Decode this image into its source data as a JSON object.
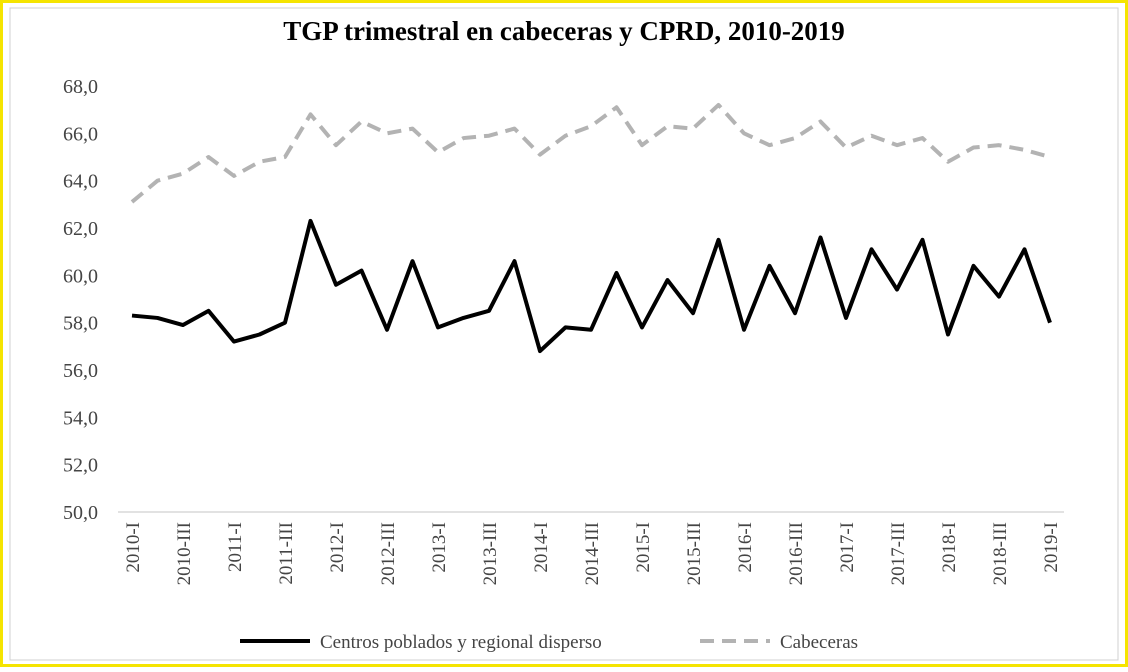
{
  "chart_data": {
    "type": "line",
    "title": "TGP trimestral en cabeceras y CPRD, 2010-2019",
    "categories": [
      "2010-I",
      null,
      "2010-III",
      null,
      "2011-I",
      null,
      "2011-III",
      null,
      "2012-I",
      null,
      "2012-III",
      null,
      "2013-I",
      null,
      "2013-III",
      null,
      "2014-I",
      null,
      "2014-III",
      null,
      "2015-I",
      null,
      "2015-III",
      null,
      "2016-I",
      null,
      "2016-III",
      null,
      "2017-I",
      null,
      "2017-III",
      null,
      "2018-I",
      null,
      "2018-III",
      null,
      "2019-I"
    ],
    "series": [
      {
        "name": "Centros poblados y regional disperso",
        "color": "#000000",
        "dash": false,
        "values": [
          58.3,
          58.2,
          57.9,
          58.5,
          57.2,
          57.5,
          58.0,
          62.3,
          59.6,
          60.2,
          57.7,
          60.6,
          57.8,
          58.2,
          58.5,
          60.6,
          56.8,
          57.8,
          57.7,
          60.1,
          57.8,
          59.8,
          58.4,
          61.5,
          57.7,
          60.4,
          58.4,
          61.6,
          58.2,
          61.1,
          59.4,
          61.5,
          57.5,
          60.4,
          59.1,
          61.1,
          58.0
        ]
      },
      {
        "name": "Cabeceras",
        "color": "#b3b3b3",
        "dash": true,
        "values": [
          63.1,
          64.0,
          64.3,
          65.0,
          64.2,
          64.8,
          65.0,
          66.8,
          65.5,
          66.5,
          66.0,
          66.2,
          65.2,
          65.8,
          65.9,
          66.2,
          65.1,
          65.9,
          66.3,
          67.1,
          65.5,
          66.3,
          66.2,
          67.2,
          66.0,
          65.5,
          65.8,
          66.5,
          65.4,
          65.9,
          65.5,
          65.8,
          64.8,
          65.4,
          65.5,
          65.3,
          65.0
        ]
      }
    ],
    "ylim": [
      50,
      68
    ],
    "yticks": [
      {
        "value": 50,
        "label": "50,0"
      },
      {
        "value": 52,
        "label": "52,0"
      },
      {
        "value": 54,
        "label": "54,0"
      },
      {
        "value": 56,
        "label": "56,0"
      },
      {
        "value": 58,
        "label": "58,0"
      },
      {
        "value": 60,
        "label": "60,0"
      },
      {
        "value": 62,
        "label": "62,0"
      },
      {
        "value": 64,
        "label": "64,0"
      },
      {
        "value": 66,
        "label": "66,0"
      },
      {
        "value": 68,
        "label": "68,0"
      }
    ],
    "grid": false,
    "legend": "bottom"
  }
}
